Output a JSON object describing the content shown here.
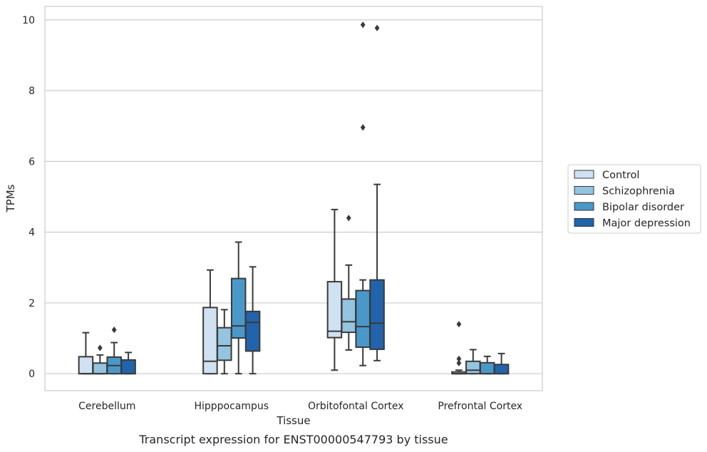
{
  "chart_data": {
    "type": "box",
    "title": "",
    "caption": "Transcript expression for ENST00000547793 by tissue",
    "xlabel": "Tissue",
    "ylabel": "TPMs",
    "ylim": [
      -0.48,
      10.38
    ],
    "yticks": [
      0,
      2,
      4,
      6,
      8,
      10
    ],
    "grid": "horizontal",
    "legend_position": "right",
    "categories": [
      "Cerebellum",
      "Hipppocampus",
      "Orbitofontal Cortex",
      "Prefrontal Cortex"
    ],
    "series": [
      {
        "name": "Control",
        "color": "#d0e1f2",
        "boxes": [
          {
            "whislo": 0,
            "q1": 0,
            "med": 0,
            "q3": 0.48,
            "whishi": 1.16,
            "fliers": []
          },
          {
            "whislo": 0,
            "q1": 0,
            "med": 0.35,
            "q3": 1.87,
            "whishi": 2.93,
            "fliers": []
          },
          {
            "whislo": 0.1,
            "q1": 1.02,
            "med": 1.2,
            "q3": 2.6,
            "whishi": 4.64,
            "fliers": []
          },
          {
            "whislo": 0,
            "q1": 0,
            "med": 0,
            "q3": 0.05,
            "whishi": 0.1,
            "fliers": [
              0.3,
              0.42,
              1.4
            ]
          }
        ]
      },
      {
        "name": "Schizophrenia",
        "color": "#94c4df",
        "boxes": [
          {
            "whislo": 0,
            "q1": 0,
            "med": 0,
            "q3": 0.3,
            "whishi": 0.53,
            "fliers": [
              0.73
            ]
          },
          {
            "whislo": 0,
            "q1": 0.38,
            "med": 0.79,
            "q3": 1.3,
            "whishi": 1.81,
            "fliers": []
          },
          {
            "whislo": 0.67,
            "q1": 1.17,
            "med": 1.47,
            "q3": 2.11,
            "whishi": 3.07,
            "fliers": [
              4.4
            ]
          },
          {
            "whislo": 0,
            "q1": 0,
            "med": 0.1,
            "q3": 0.35,
            "whishi": 0.68,
            "fliers": []
          }
        ]
      },
      {
        "name": "Bipolar disorder",
        "color": "#4a98c9",
        "boxes": [
          {
            "whislo": 0,
            "q1": 0,
            "med": 0.23,
            "q3": 0.47,
            "whishi": 0.88,
            "fliers": [
              1.24
            ]
          },
          {
            "whislo": 0,
            "q1": 1.01,
            "med": 1.35,
            "q3": 2.69,
            "whishi": 3.72,
            "fliers": []
          },
          {
            "whislo": 0.23,
            "q1": 0.75,
            "med": 1.33,
            "q3": 2.35,
            "whishi": 2.65,
            "fliers": [
              6.96,
              9.86
            ]
          },
          {
            "whislo": 0,
            "q1": 0,
            "med": 0,
            "q3": 0.31,
            "whishi": 0.49,
            "fliers": []
          }
        ]
      },
      {
        "name": "Major depression",
        "color": "#2164ab",
        "boxes": [
          {
            "whislo": 0,
            "q1": 0,
            "med": 0,
            "q3": 0.39,
            "whishi": 0.6,
            "fliers": []
          },
          {
            "whislo": 0,
            "q1": 0.64,
            "med": 1.45,
            "q3": 1.76,
            "whishi": 3.02,
            "fliers": []
          },
          {
            "whislo": 0.37,
            "q1": 0.69,
            "med": 1.43,
            "q3": 2.65,
            "whishi": 5.35,
            "fliers": [
              9.77
            ]
          },
          {
            "whislo": 0,
            "q1": 0,
            "med": 0,
            "q3": 0.26,
            "whishi": 0.57,
            "fliers": []
          }
        ]
      }
    ]
  }
}
